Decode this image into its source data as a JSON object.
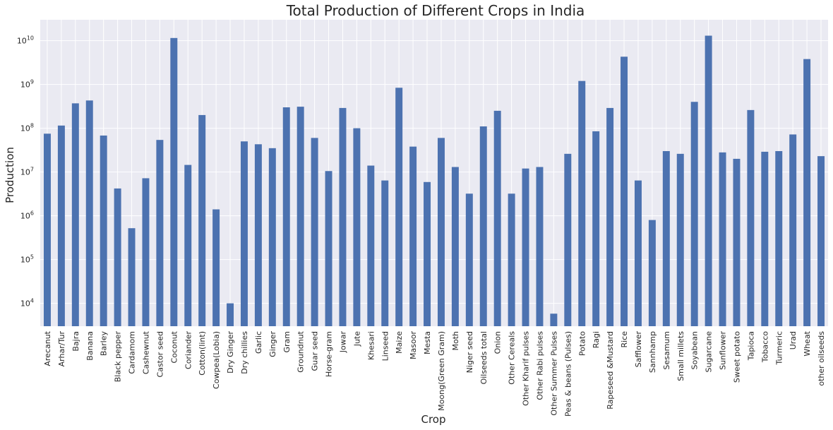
{
  "chart_data": {
    "type": "bar",
    "title": "Total Production of Different Crops in India",
    "xlabel": "Crop",
    "ylabel": "Production",
    "yscale": "log",
    "ylim": [
      3000,
      30000000000
    ],
    "grid": true,
    "legend": "none",
    "colors": {
      "bar": "#4c72b0",
      "plot_bg": "#eaeaf2",
      "grid": "#ffffff"
    },
    "yticks": [
      {
        "value": 10000,
        "mant": "10",
        "exp": "4"
      },
      {
        "value": 100000,
        "mant": "10",
        "exp": "5"
      },
      {
        "value": 1000000,
        "mant": "10",
        "exp": "6"
      },
      {
        "value": 10000000,
        "mant": "10",
        "exp": "7"
      },
      {
        "value": 100000000,
        "mant": "10",
        "exp": "8"
      },
      {
        "value": 1000000000,
        "mant": "10",
        "exp": "9"
      },
      {
        "value": 10000000000,
        "mant": "10",
        "exp": "10"
      }
    ],
    "categories": [
      "Arecanut",
      "Arhar/Tur",
      "Bajra",
      "Banana",
      "Barley",
      "Black pepper",
      "Cardamom",
      "Cashewnut",
      "Castor seed",
      "Coconut",
      "Coriander",
      "Cotton(lint)",
      "Cowpea(Lobia)",
      "Dry Ginger",
      "Dry chillies",
      "Garlic",
      "Ginger",
      "Gram",
      "Groundnut",
      "Guar seed",
      "Horse-gram",
      "Jowar",
      "Jute",
      "Khesari",
      "Linseed",
      "Maize",
      "Masoor",
      "Mesta",
      "Moong(Green Gram)",
      "Moth",
      "Niger seed",
      "Oilseeds total",
      "Onion",
      "Other Cereals",
      "Other Kharif pulses",
      "Other Rabi pulses",
      "Other Summer Pulses",
      "Peas & beans (Pulses)",
      "Potato",
      "Ragi",
      "Rapeseed &Mustard",
      "Rice",
      "Safflower",
      "Sannhamp",
      "Sesamum",
      "Small millets",
      "Soyabean",
      "Sugarcane",
      "Sunflower",
      "Sweet potato",
      "Tapioca",
      "Tobacco",
      "Turmeric",
      "Urad",
      "Wheat",
      "other oilseeds"
    ],
    "values": [
      75000000,
      115000000,
      370000000,
      430000000,
      68000000,
      4200000,
      520000,
      7200000,
      54000000,
      11500000000,
      14500000,
      200000000,
      1400000,
      10000,
      50000000,
      43000000,
      35000000,
      300000000,
      310000000,
      60000000,
      10500000,
      290000000,
      100000000,
      14000000,
      6400000,
      840000000,
      38000000,
      5900000,
      60000000,
      13000000,
      3200000,
      110000000,
      250000000,
      3200000,
      12000000,
      13000000,
      5800,
      26000000,
      1200000000,
      85000000,
      290000000,
      4300000000,
      6400000,
      800000,
      30000000,
      26000000,
      400000000,
      13000000000,
      28000000,
      20000000,
      260000000,
      29000000,
      30000000,
      72000000,
      3800000000,
      23000000
    ]
  }
}
